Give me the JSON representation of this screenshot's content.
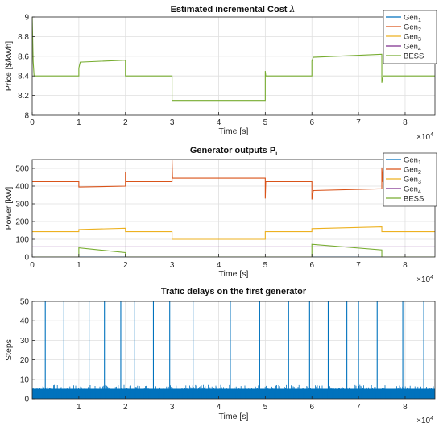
{
  "chart_data": [
    {
      "type": "line",
      "title": "Estimated incremental Cost",
      "title_symbol": "λ",
      "title_symbol_sub": "i",
      "xlabel": "Time [s]",
      "ylabel": "Price [$/kWh]",
      "xlim": [
        0,
        86400
      ],
      "ylim": [
        8,
        9
      ],
      "x_ticks": [
        "0",
        "1",
        "2",
        "3",
        "4",
        "5",
        "6",
        "7",
        "8"
      ],
      "y_ticks": [
        "8",
        "8.2",
        "8.4",
        "8.6",
        "8.8",
        "9"
      ],
      "x_exponent_base": "×10",
      "x_exponent": "4",
      "grid": true,
      "legend_placement": "top-right",
      "legend": [
        {
          "name": "Gen",
          "sub": "1",
          "color": "#0072BD"
        },
        {
          "name": "Gen",
          "sub": "2",
          "color": "#D95319"
        },
        {
          "name": "Gen",
          "sub": "3",
          "color": "#EDB120"
        },
        {
          "name": "Gen",
          "sub": "4",
          "color": "#7E2F8E"
        },
        {
          "name": "BESS",
          "sub": "",
          "color": "#77AC30"
        }
      ],
      "series": [
        {
          "name": "BESS",
          "color": "#77AC30",
          "x": [
            0,
            200,
            400,
            1000,
            10000,
            10000,
            10300,
            20000,
            20000,
            20200,
            30000,
            30000,
            30200,
            50000,
            50000,
            50100,
            60000,
            60000,
            60300,
            75000,
            75000,
            75300,
            86400
          ],
          "y": [
            9.0,
            8.55,
            8.4,
            8.4,
            8.4,
            8.48,
            8.54,
            8.56,
            8.4,
            8.4,
            8.4,
            8.15,
            8.15,
            8.15,
            8.45,
            8.4,
            8.4,
            8.55,
            8.59,
            8.62,
            8.33,
            8.4,
            8.4
          ]
        }
      ]
    },
    {
      "type": "line",
      "title": "Generator outputs P",
      "title_sub": "i",
      "xlabel": "Time [s]",
      "ylabel": "Power [kW]",
      "xlim": [
        0,
        86400
      ],
      "ylim": [
        0,
        550
      ],
      "x_ticks": [
        "0",
        "1",
        "2",
        "3",
        "4",
        "5",
        "6",
        "7",
        "8"
      ],
      "y_ticks": [
        "0",
        "100",
        "200",
        "300",
        "400",
        "500"
      ],
      "x_exponent_base": "×10",
      "x_exponent": "4",
      "grid": true,
      "legend_placement": "top-right",
      "legend": [
        {
          "name": "Gen",
          "sub": "1",
          "color": "#0072BD"
        },
        {
          "name": "Gen",
          "sub": "2",
          "color": "#D95319"
        },
        {
          "name": "Gen",
          "sub": "3",
          "color": "#EDB120"
        },
        {
          "name": "Gen",
          "sub": "4",
          "color": "#7E2F8E"
        },
        {
          "name": "BESS",
          "sub": "",
          "color": "#77AC30"
        }
      ],
      "series": [
        {
          "name": "Gen1",
          "color": "#0072BD",
          "x": [
            0,
            86400
          ],
          "y": [
            0,
            0
          ]
        },
        {
          "name": "Gen2",
          "color": "#D95319",
          "x": [
            0,
            10000,
            10000,
            10300,
            20000,
            20000,
            20100,
            30000,
            30000,
            30100,
            50000,
            50000,
            50100,
            60000,
            60000,
            60300,
            75000,
            75000,
            75200,
            86400
          ],
          "y": [
            425,
            425,
            395,
            395,
            400,
            480,
            425,
            425,
            550,
            445,
            445,
            330,
            425,
            425,
            325,
            375,
            385,
            505,
            425,
            425
          ]
        },
        {
          "name": "Gen3",
          "color": "#EDB120",
          "x": [
            0,
            10000,
            10000,
            20000,
            20000,
            30000,
            30000,
            50000,
            50000,
            60000,
            60000,
            75000,
            75000,
            86400
          ],
          "y": [
            143,
            143,
            155,
            162,
            143,
            143,
            100,
            100,
            143,
            143,
            160,
            170,
            143,
            143
          ]
        },
        {
          "name": "Gen4",
          "color": "#7E2F8E",
          "x": [
            0,
            86400
          ],
          "y": [
            57,
            57
          ]
        },
        {
          "name": "BESS",
          "color": "#77AC30",
          "x": [
            0,
            10000,
            10000,
            20000,
            20000,
            50000,
            60000,
            60000,
            75000,
            75000,
            86400
          ],
          "y": [
            0,
            0,
            52,
            25,
            0,
            0,
            0,
            72,
            40,
            0,
            0
          ]
        }
      ]
    },
    {
      "type": "line",
      "title": "Trafic delays on the first generator",
      "xlabel": "Time [s]",
      "ylabel": "Steps",
      "xlim": [
        0,
        86400
      ],
      "ylim": [
        0,
        50
      ],
      "x_ticks": [
        "1",
        "2",
        "3",
        "4",
        "5",
        "6",
        "7",
        "8"
      ],
      "y_ticks": [
        "0",
        "10",
        "20",
        "30",
        "40",
        "50"
      ],
      "x_exponent_base": "×10",
      "x_exponent": "4",
      "grid": true,
      "baseline_band": [
        0,
        6
      ],
      "spikes_x": [
        2800,
        6800,
        12200,
        15500,
        19000,
        22000,
        26000,
        29500,
        34500,
        42500,
        48800,
        55000,
        59500,
        63500,
        67500,
        70000,
        74000,
        79500,
        84000
      ],
      "series": [
        {
          "name": "Gen1",
          "color": "#0072BD",
          "x": [
            0,
            86400
          ],
          "y": [
            3,
            3
          ]
        }
      ]
    }
  ]
}
